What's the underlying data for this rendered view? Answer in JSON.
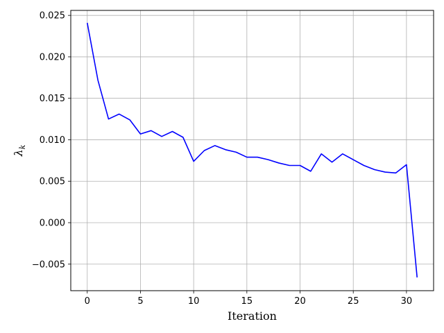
{
  "chart_data": {
    "type": "line",
    "xlabel": "Iteration",
    "ylabel": "λ",
    "ylabel_subscript": "k",
    "xlim": [
      -1.55,
      32.55
    ],
    "ylim": [
      -0.0082,
      0.0256
    ],
    "grid": true,
    "xticks": [
      0,
      5,
      10,
      15,
      20,
      25,
      30
    ],
    "yticks": [
      -0.005,
      0.0,
      0.005,
      0.01,
      0.015,
      0.02,
      0.025
    ],
    "xtick_labels": [
      "0",
      "5",
      "10",
      "15",
      "20",
      "25",
      "30"
    ],
    "ytick_labels": [
      "−0.005",
      "0.000",
      "0.005",
      "0.010",
      "0.015",
      "0.020",
      "0.025"
    ],
    "series": [
      {
        "color": "#0000ff",
        "x": [
          0,
          1,
          2,
          3,
          4,
          5,
          6,
          7,
          8,
          9,
          10,
          11,
          12,
          13,
          14,
          15,
          16,
          17,
          18,
          19,
          20,
          21,
          22,
          23,
          24,
          25,
          26,
          27,
          28,
          29,
          30,
          31
        ],
        "values": [
          0.0241,
          0.0172,
          0.0125,
          0.0131,
          0.0124,
          0.0107,
          0.0111,
          0.0104,
          0.011,
          0.0103,
          0.0074,
          0.0087,
          0.0093,
          0.0088,
          0.0085,
          0.0079,
          0.0079,
          0.0076,
          0.0072,
          0.0069,
          0.0069,
          0.0062,
          0.0083,
          0.0073,
          0.0083,
          0.0076,
          0.0069,
          0.0064,
          0.0061,
          0.006,
          0.007,
          -0.0066
        ]
      }
    ]
  }
}
